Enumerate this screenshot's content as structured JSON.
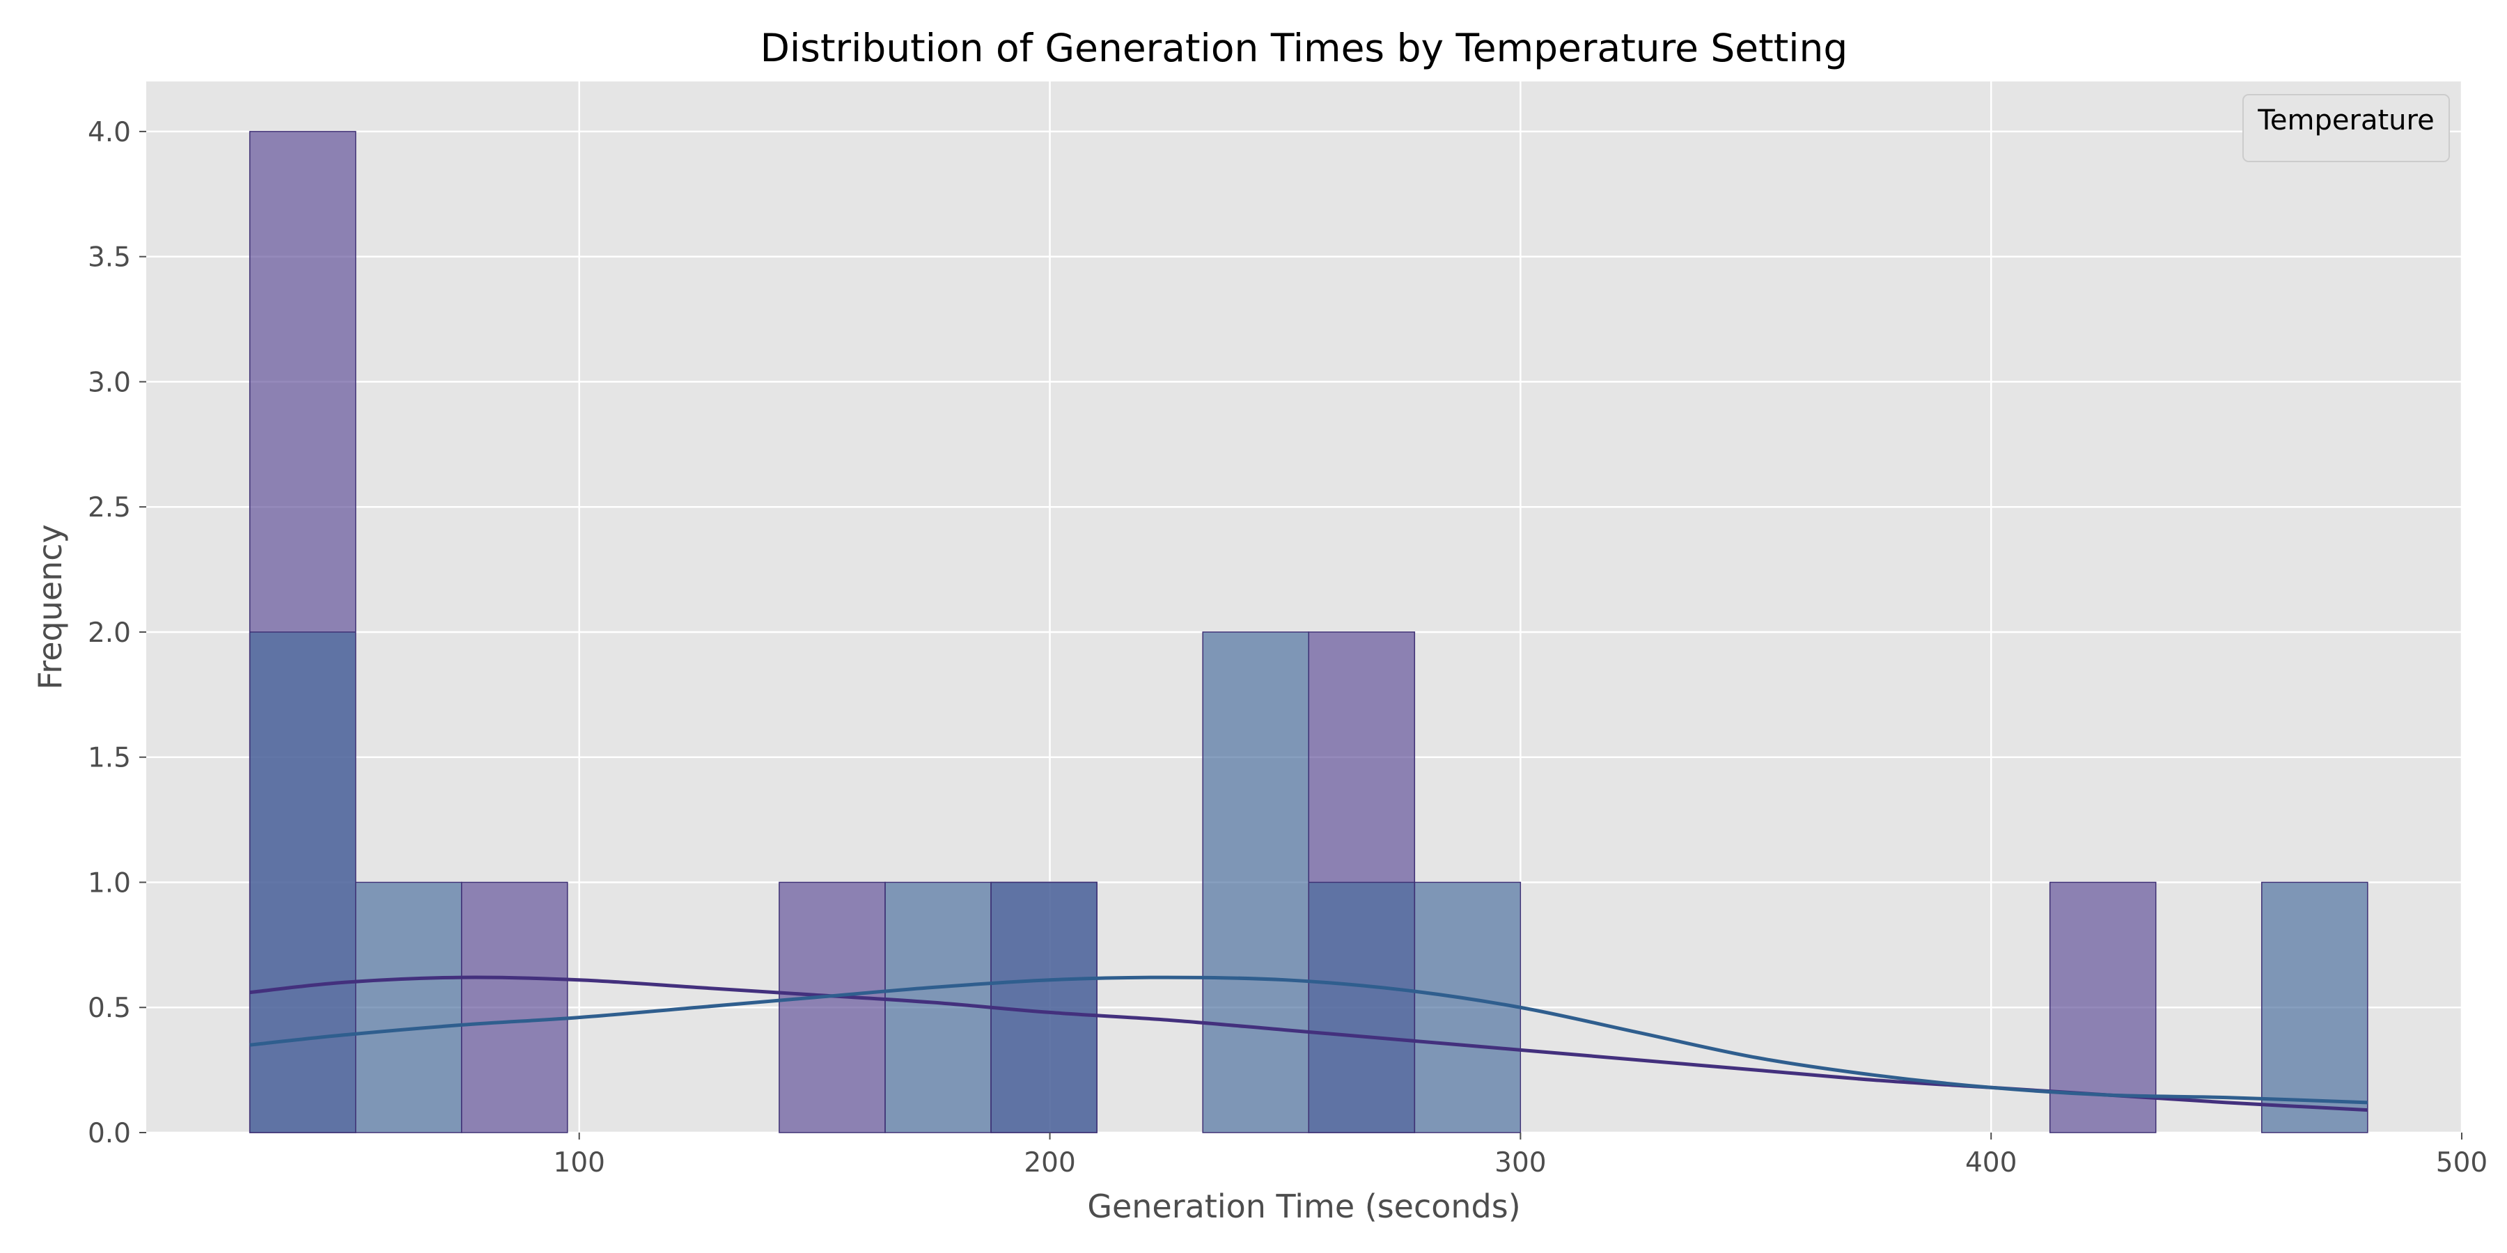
{
  "chart_data": {
    "type": "histogram",
    "title": "Distribution of Generation Times by Temperature Setting",
    "xlabel": "Generation Time (seconds)",
    "ylabel": "Frequency",
    "xlim": [
      8,
      500
    ],
    "ylim": [
      0,
      4.2
    ],
    "x_ticks": [
      100,
      200,
      300,
      400,
      500
    ],
    "y_ticks": [
      0.0,
      0.5,
      1.0,
      1.5,
      2.0,
      2.5,
      3.0,
      3.5,
      4.0
    ],
    "grid": true,
    "legend": {
      "title": "Temperature",
      "position": "top-right"
    },
    "bin_edges": [
      30,
      52.5,
      75,
      97.5,
      120,
      142.5,
      165,
      187.5,
      210,
      232.5,
      255,
      277.5,
      300,
      322.5,
      345,
      367.5,
      390,
      412.5,
      435,
      457.5,
      480
    ],
    "series": [
      {
        "color": "#5c4b96",
        "counts": [
          4,
          0,
          1,
          0,
          0,
          1,
          0,
          1,
          0,
          0,
          2,
          0,
          0,
          0,
          0,
          0,
          0,
          1,
          0,
          0
        ],
        "kde_x": [
          30,
          50,
          75,
          100,
          125,
          150,
          175,
          200,
          225,
          250,
          275,
          300,
          325,
          350,
          375,
          400,
          425,
          450,
          480
        ],
        "kde_y": [
          0.56,
          0.6,
          0.62,
          0.61,
          0.58,
          0.55,
          0.52,
          0.48,
          0.45,
          0.41,
          0.37,
          0.33,
          0.29,
          0.25,
          0.21,
          0.18,
          0.15,
          0.12,
          0.09
        ]
      },
      {
        "color": "#476b9c",
        "counts": [
          2,
          1,
          0,
          0,
          0,
          0,
          1,
          1,
          0,
          2,
          1,
          1,
          0,
          0,
          0,
          0,
          0,
          0,
          0,
          1
        ],
        "kde_x": [
          30,
          50,
          75,
          100,
          125,
          150,
          175,
          200,
          225,
          250,
          275,
          300,
          325,
          350,
          375,
          400,
          425,
          450,
          480
        ],
        "kde_y": [
          0.35,
          0.39,
          0.43,
          0.46,
          0.5,
          0.54,
          0.58,
          0.61,
          0.62,
          0.61,
          0.57,
          0.5,
          0.4,
          0.3,
          0.23,
          0.18,
          0.15,
          0.14,
          0.12
        ]
      }
    ]
  }
}
